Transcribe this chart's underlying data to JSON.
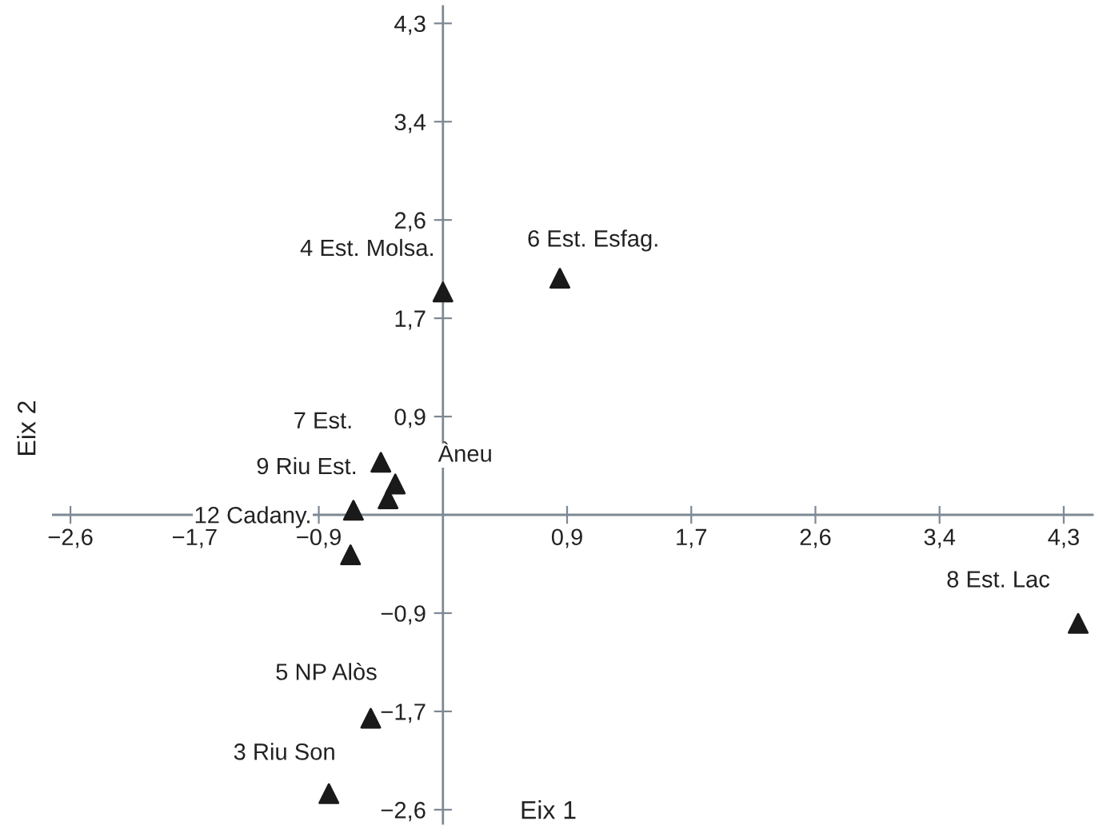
{
  "chart_data": {
    "type": "scatter",
    "xlabel": "Eix 1",
    "ylabel": "Eix 2",
    "marker": "triangle",
    "grid": false,
    "legend": false,
    "xlim": [
      -2.7,
      4.5
    ],
    "ylim": [
      -2.7,
      4.45
    ],
    "xticks": [
      {
        "value": -2.58,
        "label": "−2,6"
      },
      {
        "value": -1.72,
        "label": "−1,7"
      },
      {
        "value": -0.86,
        "label": "−0,9"
      },
      {
        "value": 0.86,
        "label": "0,9"
      },
      {
        "value": 1.72,
        "label": "1,7"
      },
      {
        "value": 2.58,
        "label": "2,6"
      },
      {
        "value": 3.44,
        "label": "3,4"
      },
      {
        "value": 4.3,
        "label": "4,3"
      }
    ],
    "yticks": [
      {
        "value": -2.58,
        "label": "−2,6"
      },
      {
        "value": -1.72,
        "label": "−1,7"
      },
      {
        "value": -0.86,
        "label": "−0,9"
      },
      {
        "value": 0.86,
        "label": "0,9"
      },
      {
        "value": 1.72,
        "label": "1,7"
      },
      {
        "value": 2.58,
        "label": "2,6"
      },
      {
        "value": 3.44,
        "label": "3,4"
      },
      {
        "value": 4.3,
        "label": "4,3"
      }
    ],
    "series": [
      {
        "color": "#1a1a1a",
        "x": [
          0.0,
          0.81,
          -0.43,
          -0.33,
          -0.38,
          -0.62,
          -0.64,
          4.4,
          -0.5,
          -0.79
        ],
        "values": [
          1.95,
          2.07,
          0.46,
          0.27,
          0.14,
          0.04,
          -0.35,
          -0.95,
          -1.78,
          -2.44
        ]
      }
    ],
    "annotations": [
      {
        "text": "4 Est. Molsa.",
        "x": 0.0,
        "y": 1.95
      },
      {
        "text": "6 Est. Esfag.",
        "x": 0.81,
        "y": 2.07
      },
      {
        "text": "7 Est.",
        "x": -0.43,
        "y": 0.46
      },
      {
        "text": "Àneu",
        "x": -0.43,
        "y": 0.46
      },
      {
        "text": "9 Riu Est.",
        "x": -0.62,
        "y": 0.04
      },
      {
        "text": "12 Cadany.",
        "x": -0.64,
        "y": -0.35
      },
      {
        "text": "8 Est. Lac",
        "x": 4.4,
        "y": -0.95
      },
      {
        "text": "5 NP Alòs",
        "x": -0.5,
        "y": -1.78
      },
      {
        "text": "3 Riu Son",
        "x": -0.79,
        "y": -2.44
      }
    ]
  }
}
